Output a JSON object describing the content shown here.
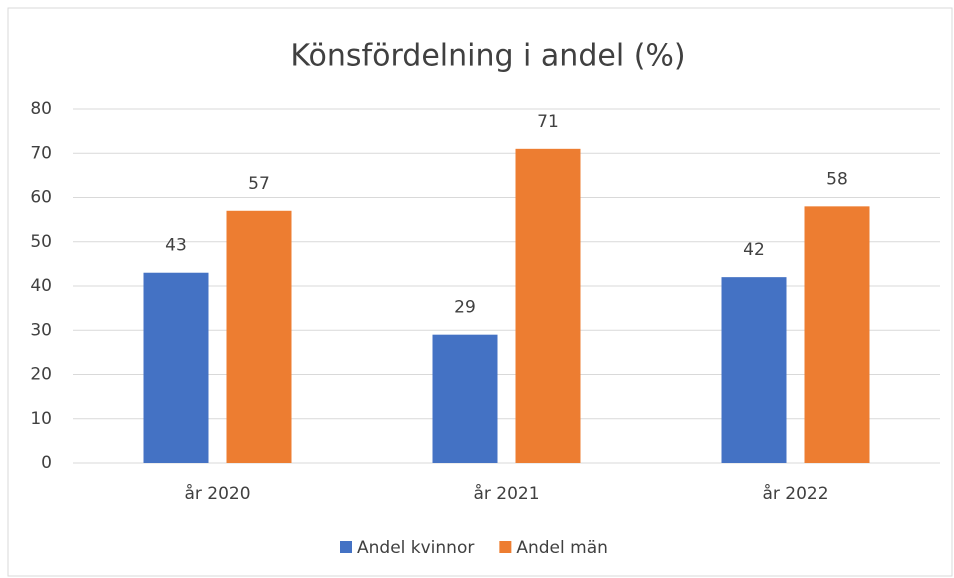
{
  "chart_data": {
    "type": "bar",
    "title": "Könsfördelning i andel (%)",
    "categories": [
      "år 2020",
      "år 2021",
      "år 2022"
    ],
    "series": [
      {
        "name": "Andel kvinnor",
        "color": "#4472c4",
        "values": [
          43,
          29,
          42
        ]
      },
      {
        "name": "Andel män",
        "color": "#ed7d31",
        "values": [
          57,
          71,
          58
        ]
      }
    ],
    "ylim": [
      0,
      80
    ],
    "yticks": [
      0,
      10,
      20,
      30,
      40,
      50,
      60,
      70,
      80
    ],
    "grid": true,
    "legend": "bottom"
  }
}
